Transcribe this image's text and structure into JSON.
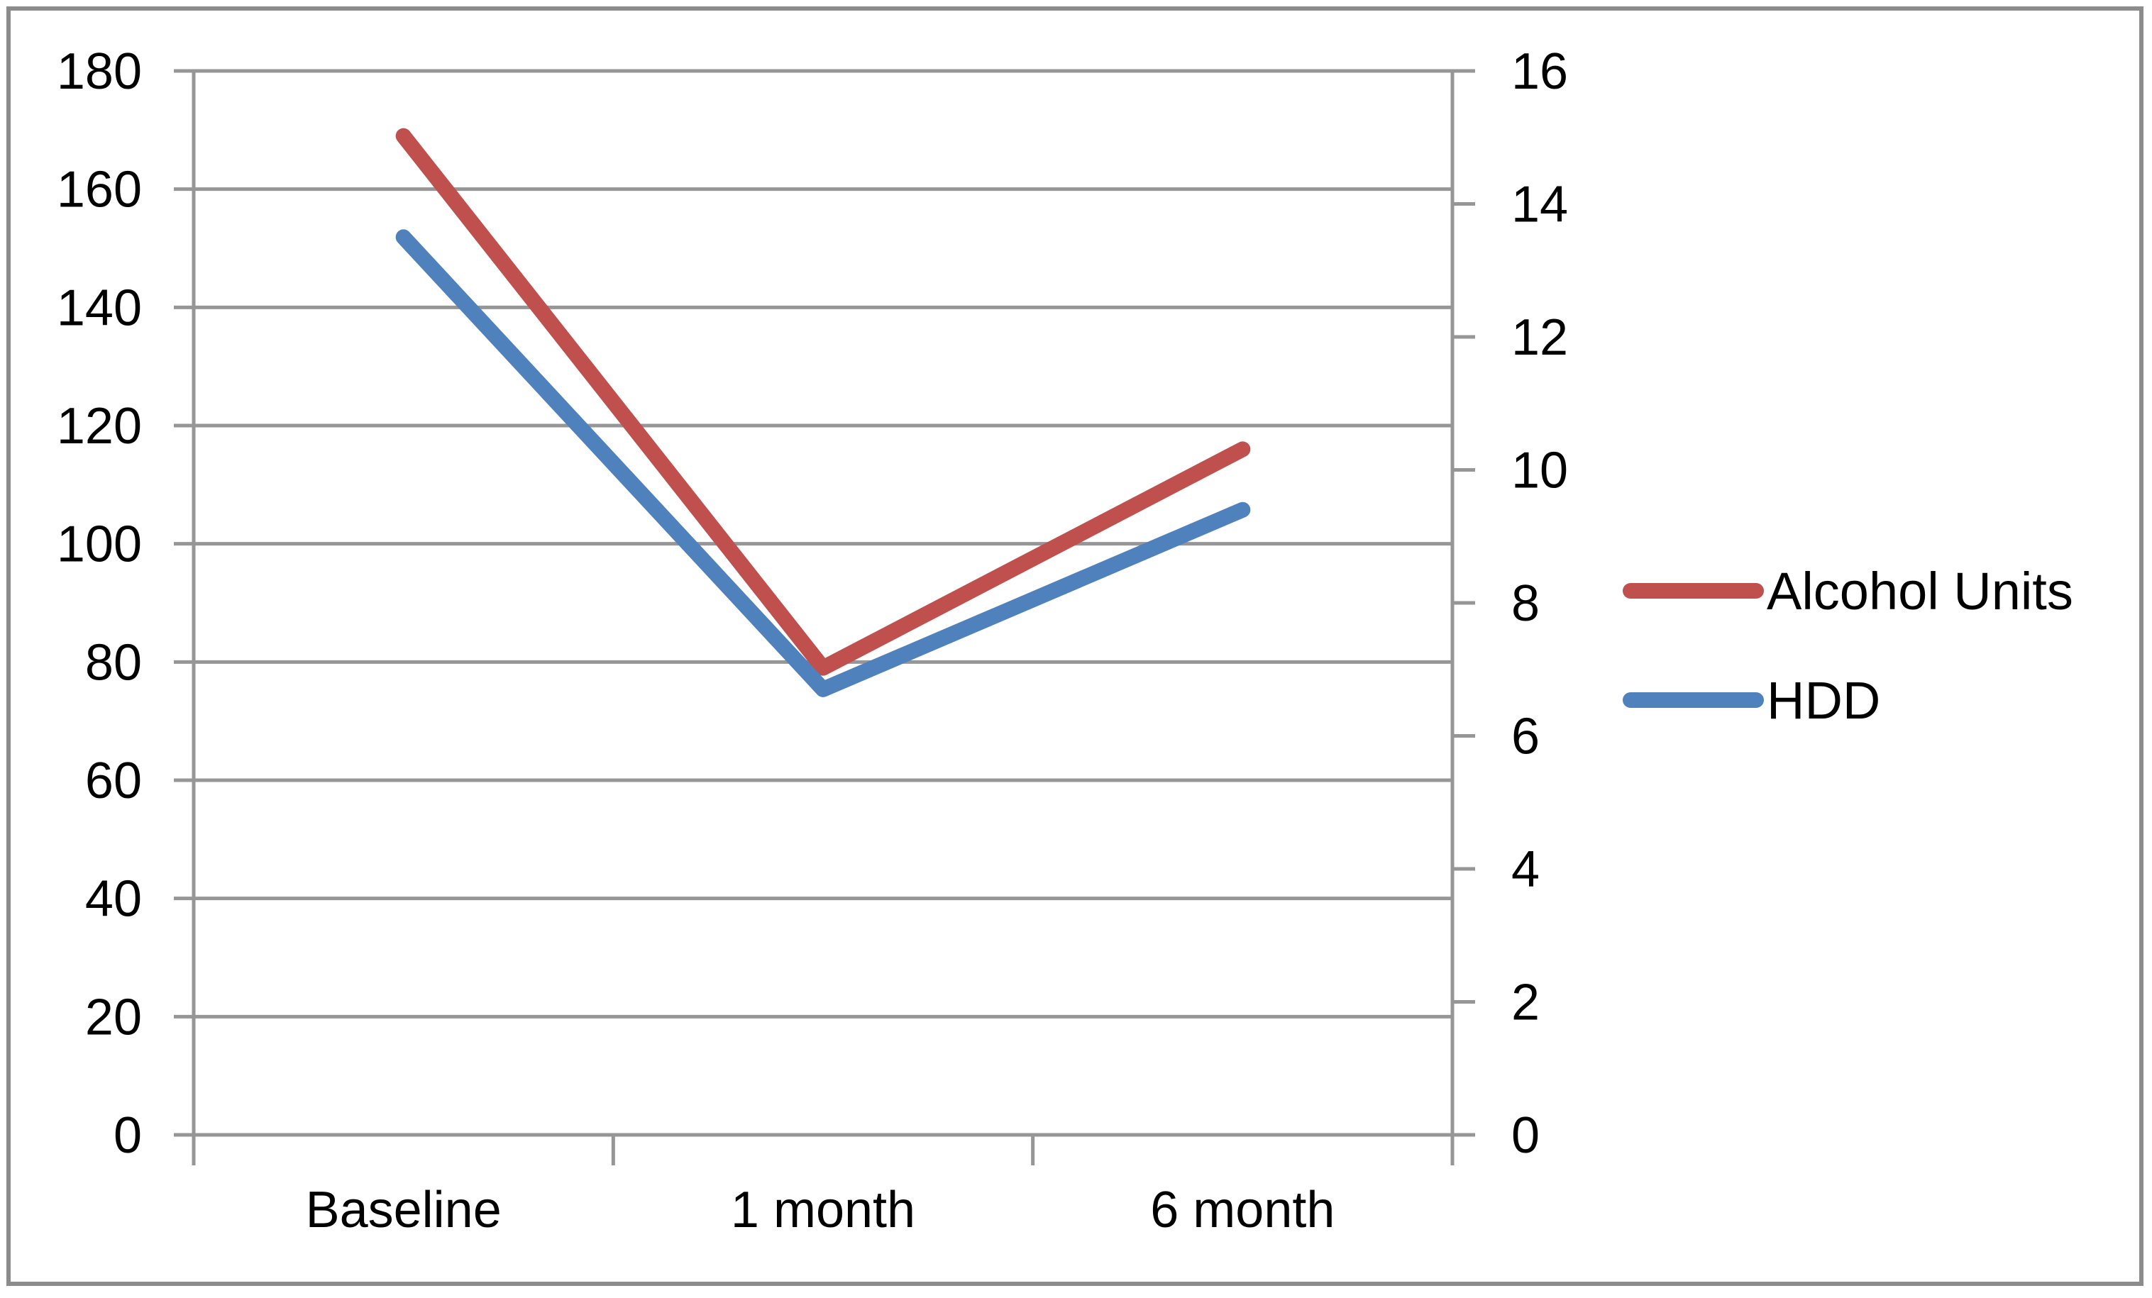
{
  "chart_data": {
    "type": "line",
    "title": "",
    "xlabel": "",
    "ylabel": "",
    "categories": [
      "Baseline",
      "1 month",
      "6 month"
    ],
    "series": [
      {
        "name": "Alcohol Units",
        "axis": "left",
        "color": "#C0504D",
        "values": [
          169,
          79,
          116
        ]
      },
      {
        "name": "HDD",
        "axis": "right",
        "color": "#4F81BD",
        "values": [
          13.5,
          6.7,
          9.4
        ]
      }
    ],
    "left_axis": {
      "min": 0,
      "max": 180,
      "step": 20,
      "tick_labels": [
        "0",
        "20",
        "40",
        "60",
        "80",
        "100",
        "120",
        "140",
        "160",
        "180"
      ]
    },
    "right_axis": {
      "min": 0,
      "max": 16,
      "step": 2,
      "tick_labels": [
        "0",
        "2",
        "4",
        "6",
        "8",
        "10",
        "12",
        "14",
        "16"
      ]
    },
    "grid": true,
    "gridlines_follow": "left_axis",
    "legend_position": "right-middle",
    "legend_items": [
      "Alcohol Units",
      "HDD"
    ]
  },
  "colors": {
    "series_alcohol_units": "#C0504D",
    "series_hdd": "#4F81BD",
    "gridline": "#969696",
    "axis": "#969696",
    "frame_border": "#8C8C8C",
    "text": "#000000",
    "background": "#FFFFFF"
  }
}
